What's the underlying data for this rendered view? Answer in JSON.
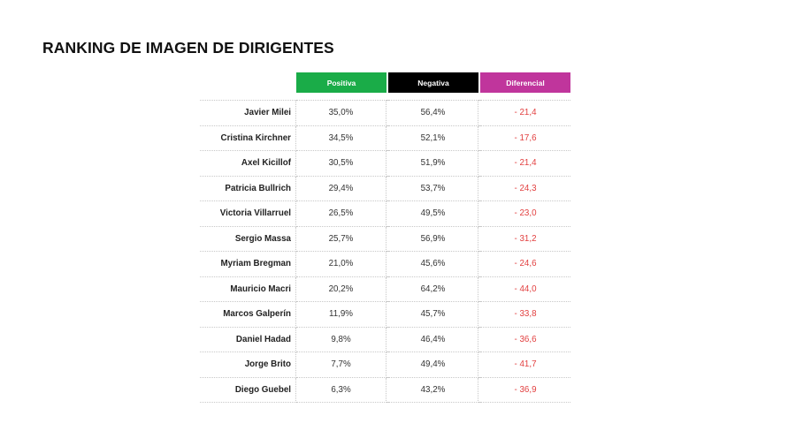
{
  "chart_data": {
    "type": "table",
    "title": "RANKING DE IMAGEN DE DIRIGENTES",
    "columns": [
      "Positiva",
      "Negativa",
      "Diferencial"
    ],
    "colors": {
      "Positiva": "#1aac48",
      "Negativa": "#000000",
      "Diferencial": "#c0359c",
      "diff_text": "#e24040"
    },
    "rows": [
      {
        "name": "Javier Milei",
        "positiva": "35,0%",
        "negativa": "56,4%",
        "diferencial": "- 21,4"
      },
      {
        "name": "Cristina Kirchner",
        "positiva": "34,5%",
        "negativa": "52,1%",
        "diferencial": "- 17,6"
      },
      {
        "name": "Axel Kicillof",
        "positiva": "30,5%",
        "negativa": "51,9%",
        "diferencial": "- 21,4"
      },
      {
        "name": "Patricia Bullrich",
        "positiva": "29,4%",
        "negativa": "53,7%",
        "diferencial": "- 24,3"
      },
      {
        "name": "Victoria Villarruel",
        "positiva": "26,5%",
        "negativa": "49,5%",
        "diferencial": "- 23,0"
      },
      {
        "name": "Sergio Massa",
        "positiva": "25,7%",
        "negativa": "56,9%",
        "diferencial": "- 31,2"
      },
      {
        "name": "Myriam Bregman",
        "positiva": "21,0%",
        "negativa": "45,6%",
        "diferencial": "- 24,6"
      },
      {
        "name": "Mauricio Macri",
        "positiva": "20,2%",
        "negativa": "64,2%",
        "diferencial": "- 44,0"
      },
      {
        "name": "Marcos Galperín",
        "positiva": "11,9%",
        "negativa": "45,7%",
        "diferencial": "- 33,8"
      },
      {
        "name": "Daniel Hadad",
        "positiva": "9,8%",
        "negativa": "46,4%",
        "diferencial": "- 36,6"
      },
      {
        "name": "Jorge Brito",
        "positiva": "7,7%",
        "negativa": "49,4%",
        "diferencial": "- 41,7"
      },
      {
        "name": "Diego Guebel",
        "positiva": "6,3%",
        "negativa": "43,2%",
        "diferencial": "- 36,9"
      }
    ]
  }
}
